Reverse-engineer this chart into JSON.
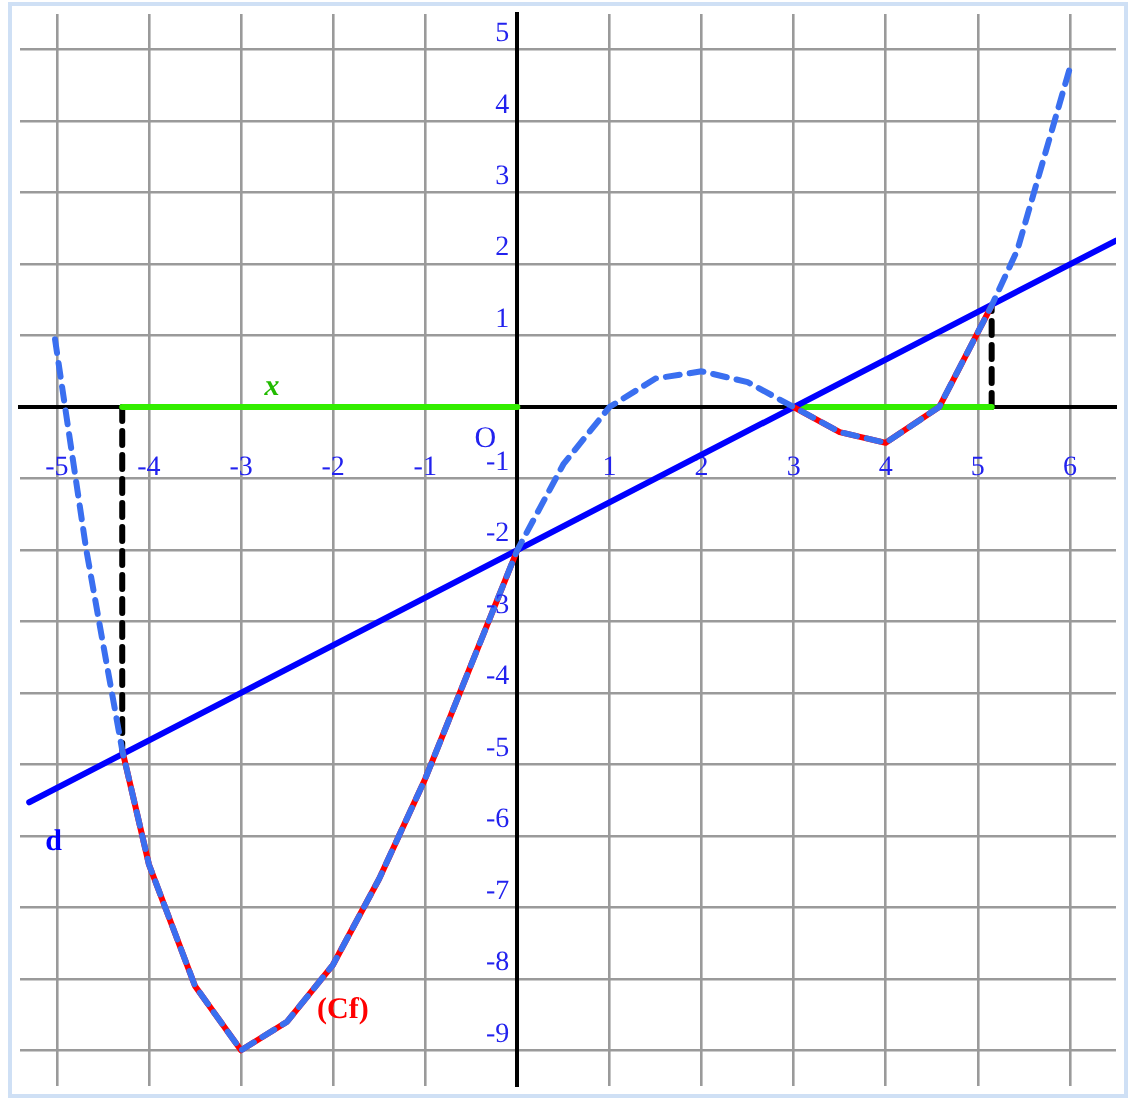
{
  "chart_data": {
    "type": "line",
    "xlim": [
      -5.4,
      6.5
    ],
    "ylim": [
      -9.5,
      5.5
    ],
    "xlabel": "x",
    "xticks": [
      -5,
      -4,
      -3,
      -2,
      -1,
      {
        "value": 0,
        "label": null
      },
      1,
      2,
      3,
      4,
      5,
      6
    ],
    "annotations": [
      "O"
    ],
    "yticks": [
      -9,
      -8,
      -7,
      -6,
      -5,
      -4,
      -3,
      -2,
      -1,
      {
        "value": 0,
        "label": null
      },
      1,
      2,
      3,
      4,
      5
    ],
    "grid": true,
    "marker": "none",
    "series": [
      {
        "color": "#3a6ff0",
        "line_style": "dashed",
        "x": [
          -5.02,
          -4.68,
          -4.5,
          -4.29,
          -4,
          -3.5,
          -3,
          -2.5,
          -2,
          -1.5,
          -1,
          -0.5,
          0,
          0.5,
          1,
          1.5,
          2,
          2.5,
          3,
          3.5,
          4,
          4.58,
          5.15,
          5.43,
          6
        ],
        "values": [
          0.95,
          -2,
          -3.3,
          -4.8,
          -6.4,
          -8.1,
          -9,
          -8.6,
          -7.8,
          -6.6,
          -5.2,
          -3.6,
          -2,
          -0.8,
          0,
          0.4,
          0.5,
          0.35,
          0,
          -0.35,
          -0.5,
          0,
          1.42,
          2.2,
          4.75
        ]
      },
      {
        "name": "(Cf)",
        "color": "#ff0000",
        "line_style": "solid",
        "x": [
          -4.29,
          -4,
          -3.5,
          -3,
          -2.5,
          -2,
          -1.5,
          -1,
          -0.5,
          0
        ],
        "values": [
          -4.8,
          -6.4,
          -8.1,
          -9,
          -8.6,
          -7.8,
          -6.6,
          -5.2,
          -3.6,
          -2
        ]
      },
      {
        "color": "#ff0000",
        "line_style": "solid",
        "x": [
          3,
          3.5,
          4,
          4.58,
          5.15
        ],
        "values": [
          0,
          -0.35,
          -0.5,
          0,
          1.42
        ]
      },
      {
        "name": "d",
        "color": "#0000ff",
        "line_style": "solid",
        "x": [
          -5.3,
          6.5
        ],
        "values": [
          -5.53,
          2.33
        ]
      },
      {
        "color": "#33ee00",
        "line_style": "solid",
        "x": [
          -4.29,
          0
        ],
        "values": [
          0,
          0
        ]
      },
      {
        "color": "#33ee00",
        "line_style": "solid",
        "x": [
          3,
          5.15
        ],
        "values": [
          0,
          0
        ]
      },
      {
        "color": "#000000",
        "line_style": "dashed",
        "x": [
          -4.29,
          -4.29
        ],
        "values": [
          0,
          -4.8
        ]
      },
      {
        "color": "#000000",
        "line_style": "dashed",
        "x": [
          5.15,
          5.15
        ],
        "values": [
          0,
          1.42
        ]
      }
    ]
  }
}
